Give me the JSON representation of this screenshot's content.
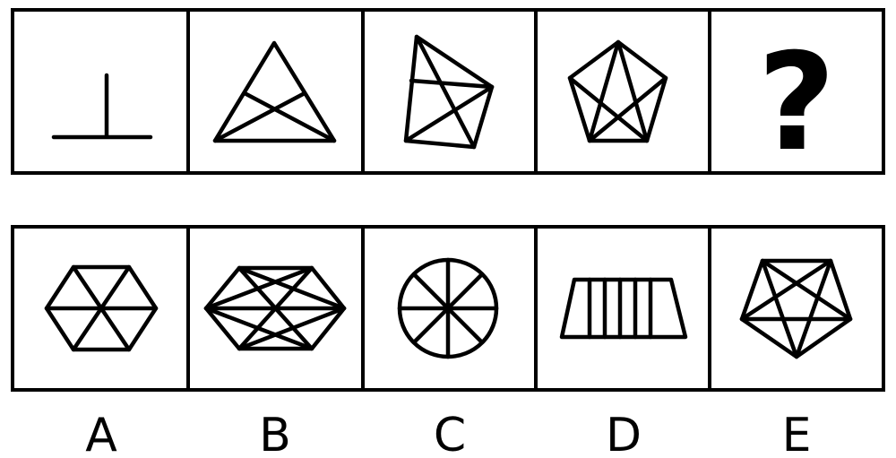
{
  "question_row": {
    "unknown_symbol": "?"
  },
  "options": {
    "labels": [
      "A",
      "B",
      "C",
      "D",
      "E"
    ]
  },
  "colors": {
    "ink": "#000000",
    "background": "#ffffff"
  }
}
